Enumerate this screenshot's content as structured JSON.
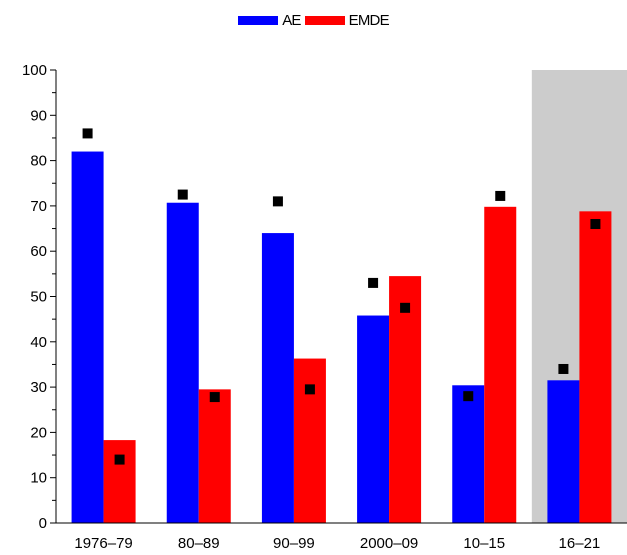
{
  "legend": {
    "items": [
      {
        "label": "AE",
        "color": "#0000FF"
      },
      {
        "label": "EMDE",
        "color": "#FF0000"
      }
    ]
  },
  "chart_data": {
    "type": "bar",
    "categories": [
      "1976–79",
      "80–89",
      "90–99",
      "2000–09",
      "10–15",
      "16–21"
    ],
    "series": [
      {
        "name": "AE",
        "color": "#0000FF",
        "values": [
          82,
          70.7,
          64,
          45.8,
          30.4,
          31.5
        ]
      },
      {
        "name": "EMDE",
        "color": "#FF0000",
        "values": [
          18.3,
          29.5,
          36.3,
          54.5,
          69.8,
          68.8
        ]
      }
    ],
    "markers": {
      "shape": "square",
      "color": "#000000",
      "AE": [
        86,
        72.5,
        71,
        53,
        28,
        34
      ],
      "EMDE": [
        14,
        27.8,
        29.5,
        47.5,
        72.2,
        66
      ]
    },
    "ylim": [
      0,
      100
    ],
    "yticks": [
      0,
      10,
      20,
      30,
      40,
      50,
      60,
      70,
      80,
      90,
      100
    ],
    "shaded_category": "16–21",
    "shade_color": "#CCCCCC",
    "xlabel": "",
    "ylabel": "",
    "title": "",
    "legend_position": "top"
  }
}
